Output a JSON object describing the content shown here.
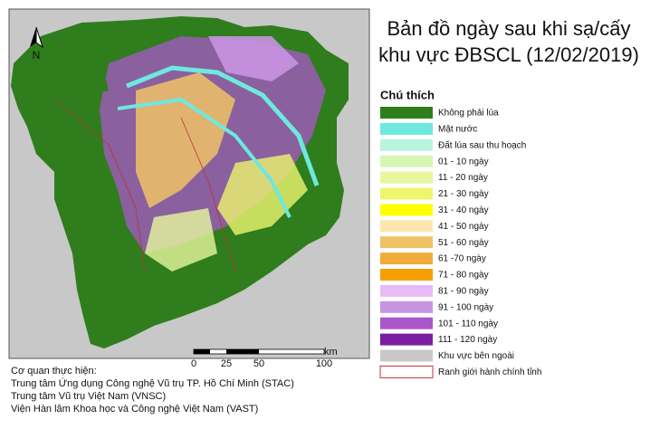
{
  "title": {
    "line1": "Bản đồ ngày sau khi sạ/cấy",
    "line2": "khu vực ĐBSCL (12/02/2019)"
  },
  "north": "N",
  "legend": {
    "title": "Chú thích",
    "items": [
      {
        "label": "Không phải lúa",
        "color": "#2f7d1c"
      },
      {
        "label": "Mặt nước",
        "color": "#6ee8e0"
      },
      {
        "label": "Đất lúa sau thu hoạch",
        "color": "#b9f4df"
      },
      {
        "label": "01 - 10 ngày",
        "color": "#d6f7b4"
      },
      {
        "label": "11 - 20 ngày",
        "color": "#e6f79c"
      },
      {
        "label": "21 - 30 ngày",
        "color": "#eef56e"
      },
      {
        "label": "31 - 40 ngày",
        "color": "#ffff00"
      },
      {
        "label": "41 - 50 ngày",
        "color": "#fbe6b0"
      },
      {
        "label": "51 - 60 ngày",
        "color": "#efc266"
      },
      {
        "label": "61 -70 ngày",
        "color": "#f0ab3a"
      },
      {
        "label": "71 - 80 ngày",
        "color": "#f5a000"
      },
      {
        "label": "81 - 90 ngày",
        "color": "#e9bbf6"
      },
      {
        "label": "91 - 100 ngày",
        "color": "#c993e2"
      },
      {
        "label": "101 - 110 ngày",
        "color": "#a957c9"
      },
      {
        "label": "111 - 120 ngày",
        "color": "#7a1fa2"
      },
      {
        "label": "Khu vực bên ngoài",
        "color": "#c8c8c8"
      },
      {
        "label": "Ranh giới hành chính tỉnh",
        "color": "#ffffff",
        "border": "#c0303a"
      }
    ]
  },
  "scale": {
    "unit": "km",
    "labels": [
      "0",
      "25",
      "50",
      "100"
    ]
  },
  "credits": {
    "heading": "Cơ quan thực hiện:",
    "lines": [
      "Trung tâm Ứng dụng Công nghệ Vũ trụ TP. Hồ Chí Minh (STAC)",
      "Trung tâm Vũ trụ Việt Nam (VNSC)",
      "Viện Hàn lâm Khoa học và Công nghệ Việt Nam (VAST)"
    ]
  }
}
